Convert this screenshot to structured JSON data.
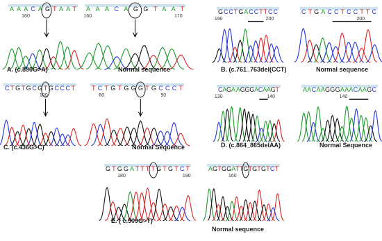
{
  "panels": [
    {
      "mutant": {
        "sequence": "AAACAGTAAT",
        "positions": [
          "160"
        ],
        "caption": "A.  (c.890G>A)"
      },
      "normal": {
        "sequence": "AAACAGGTAAT",
        "positions": [
          "160",
          "170"
        ],
        "caption": "Normal sequence"
      }
    },
    {
      "mutant": {
        "sequence": "GCCTGACCTTCC",
        "positions": [
          "190",
          "200"
        ],
        "caption": "B.  (c.761_763del(CCT)"
      },
      "normal": {
        "sequence": "CTGACCTCCTTC",
        "positions": [
          "200"
        ],
        "caption": "Normal sequence"
      }
    },
    {
      "mutant": {
        "sequence": "CTGTGCGTGCCCT",
        "positions": [
          "100"
        ],
        "caption": "C.  (c.436G>C)"
      },
      "normal": {
        "sequence": "TCTGTGGGTGCCCT",
        "positions": [
          "80",
          "90"
        ],
        "caption": "Normal Sequence"
      }
    },
    {
      "mutant": {
        "sequence": "CAGA AGGGACAAGT",
        "positions": [
          "130",
          "140"
        ],
        "caption": "D.  (c.864_865delAA)"
      },
      "normal": {
        "sequence": "AACAAGGGAAACAAGC",
        "positions": [
          "140"
        ],
        "caption": "Normal Sequence"
      }
    },
    {
      "mutant": {
        "sequence": "GTGGATTTTGTGTCT",
        "positions": [
          "180",
          "190"
        ],
        "caption": "E.     ( c.509G>T)"
      },
      "normal": {
        "sequence": "AGTGGATTGTGTGTCT",
        "positions": [
          "160"
        ],
        "caption": "Normal sequence"
      }
    }
  ]
}
